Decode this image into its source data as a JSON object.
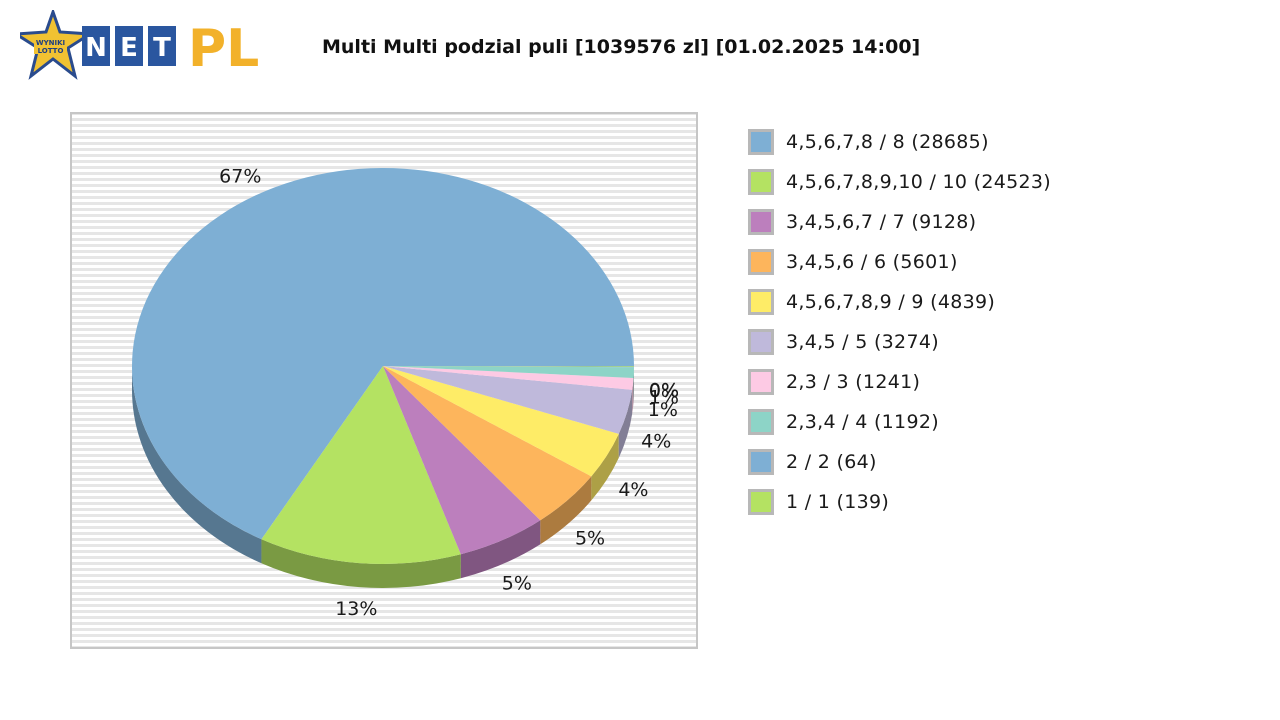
{
  "logo": {
    "badge_text": "WYNIKI LOTTO",
    "letters": [
      "N",
      "E",
      "T"
    ],
    "suffix": "PL"
  },
  "title": "Multi Multi podzial puli [1039576 zl] [01.02.2025 14:00]",
  "colors": {
    "background_stripes": [
      "#ebebeb",
      "#ffffff"
    ],
    "frame": "#c9c9c9"
  },
  "chart_data": {
    "type": "pie",
    "title": "Multi Multi podzial puli [1039576 zl] [01.02.2025 14:00]",
    "legend_position": "right",
    "slices": [
      {
        "label": "4,5,6,7,8 / 8 (28685)",
        "value": 697,
        "pct_label": "67%",
        "color": "#7eafd4"
      },
      {
        "label": "4,5,6,7,8,9,10 / 10 (24523)",
        "value": 136,
        "pct_label": "13%",
        "color": "#b4e262"
      },
      {
        "label": "3,4,5,6,7 / 7 (9128)",
        "value": 60,
        "pct_label": "5%",
        "color": "#bc7fbd"
      },
      {
        "label": "3,4,5,6 / 6 (5601)",
        "value": 50,
        "pct_label": "5%",
        "color": "#fdb55c"
      },
      {
        "label": "4,5,6,7,8,9 / 9 (4839)",
        "value": 40,
        "pct_label": "4%",
        "color": "#feec67"
      },
      {
        "label": "3,4,5 / 5 (3274)",
        "value": 38,
        "pct_label": "4%",
        "color": "#bfb9db"
      },
      {
        "label": "2,3 / 3 (1241)",
        "value": 10,
        "pct_label": "1%",
        "color": "#fdcae4"
      },
      {
        "label": "2,3,4 / 4 (1192)",
        "value": 9,
        "pct_label": "1%",
        "color": "#8dd4c7"
      },
      {
        "label": "2 / 2 (64)",
        "value": 0.5,
        "pct_label": "0%",
        "color": "#7eafd4"
      },
      {
        "label": "1 / 1 (139)",
        "value": 0.5,
        "pct_label": "0%",
        "color": "#b4e262"
      }
    ]
  }
}
